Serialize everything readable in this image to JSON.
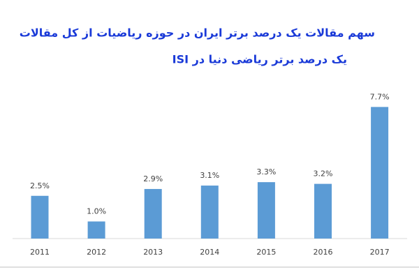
{
  "chart_data": {
    "type": "bar",
    "title": [
      "سهم مقالات یک درصد برتر ایران در حوزه ریاضیات از کل مقالات",
      "یک درصد برتر ریاضی دنیا در  ISI"
    ],
    "categories": [
      "2011",
      "2012",
      "2013",
      "2014",
      "2015",
      "2016",
      "2017"
    ],
    "values": [
      2.5,
      1.0,
      2.9,
      3.1,
      3.3,
      3.2,
      7.7
    ],
    "value_labels": [
      "2.5%",
      "1.0%",
      "2.9%",
      "3.1%",
      "3.3%",
      "3.2%",
      "7.7%"
    ],
    "color": "#5b9bd5"
  }
}
